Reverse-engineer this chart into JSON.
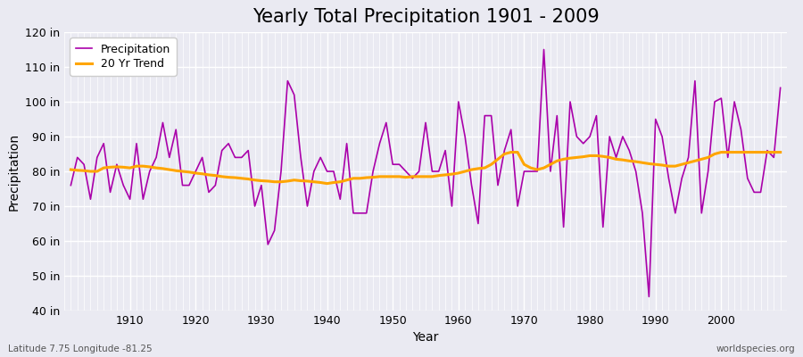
{
  "title": "Yearly Total Precipitation 1901 - 2009",
  "ylabel": "Precipitation",
  "xlabel": "Year",
  "lat_lon_label": "Latitude 7.75 Longitude -81.25",
  "watermark": "worldspecies.org",
  "ylim": [
    40,
    120
  ],
  "ytick_step": 10,
  "years": [
    1901,
    1902,
    1903,
    1904,
    1905,
    1906,
    1907,
    1908,
    1909,
    1910,
    1911,
    1912,
    1913,
    1914,
    1915,
    1916,
    1917,
    1918,
    1919,
    1920,
    1921,
    1922,
    1923,
    1924,
    1925,
    1926,
    1927,
    1928,
    1929,
    1930,
    1931,
    1932,
    1933,
    1934,
    1935,
    1936,
    1937,
    1938,
    1939,
    1940,
    1941,
    1942,
    1943,
    1944,
    1945,
    1946,
    1947,
    1948,
    1949,
    1950,
    1951,
    1952,
    1953,
    1954,
    1955,
    1956,
    1957,
    1958,
    1959,
    1960,
    1961,
    1962,
    1963,
    1964,
    1965,
    1966,
    1967,
    1968,
    1969,
    1970,
    1971,
    1972,
    1973,
    1974,
    1975,
    1976,
    1977,
    1978,
    1979,
    1980,
    1981,
    1982,
    1983,
    1984,
    1985,
    1986,
    1987,
    1988,
    1989,
    1990,
    1991,
    1992,
    1993,
    1994,
    1995,
    1996,
    1997,
    1998,
    1999,
    2000,
    2001,
    2002,
    2003,
    2004,
    2005,
    2006,
    2007,
    2008,
    2009
  ],
  "precip": [
    76,
    84,
    82,
    72,
    84,
    88,
    74,
    82,
    76,
    72,
    88,
    72,
    80,
    84,
    94,
    84,
    92,
    76,
    76,
    80,
    84,
    74,
    76,
    86,
    88,
    84,
    84,
    86,
    70,
    76,
    59,
    63,
    80,
    106,
    102,
    84,
    70,
    80,
    84,
    80,
    80,
    72,
    88,
    68,
    68,
    68,
    80,
    88,
    94,
    82,
    82,
    80,
    78,
    80,
    94,
    80,
    80,
    86,
    70,
    100,
    90,
    76,
    65,
    96,
    96,
    76,
    86,
    92,
    70,
    80,
    80,
    80,
    115,
    80,
    96,
    64,
    100,
    90,
    88,
    90,
    96,
    64,
    90,
    84,
    90,
    86,
    80,
    68,
    44,
    95,
    90,
    78,
    68,
    78,
    84,
    106,
    68,
    80,
    100,
    101,
    84,
    100,
    92,
    78,
    74,
    74,
    86,
    84,
    104
  ],
  "trend": [
    80.5,
    80.3,
    80.2,
    80.0,
    80.0,
    81.0,
    81.2,
    81.3,
    81.2,
    81.0,
    81.5,
    81.5,
    81.3,
    81.0,
    80.8,
    80.5,
    80.2,
    80.0,
    79.8,
    79.5,
    79.3,
    79.0,
    78.8,
    78.5,
    78.3,
    78.2,
    78.0,
    77.8,
    77.5,
    77.3,
    77.2,
    77.0,
    77.0,
    77.2,
    77.5,
    77.3,
    77.2,
    77.0,
    76.8,
    76.5,
    76.8,
    77.0,
    77.5,
    78.0,
    78.0,
    78.2,
    78.3,
    78.5,
    78.5,
    78.5,
    78.5,
    78.3,
    78.5,
    78.5,
    78.5,
    78.5,
    78.8,
    79.0,
    79.2,
    79.5,
    80.0,
    80.5,
    80.8,
    81.0,
    82.0,
    83.5,
    85.0,
    85.5,
    85.5,
    82.0,
    81.0,
    80.5,
    81.0,
    82.0,
    83.0,
    83.5,
    83.8,
    84.0,
    84.2,
    84.5,
    84.5,
    84.3,
    84.0,
    83.5,
    83.3,
    83.0,
    82.8,
    82.5,
    82.2,
    82.0,
    81.8,
    81.5,
    81.5,
    82.0,
    82.5,
    83.0,
    83.5,
    84.0,
    85.0,
    85.5,
    85.5,
    85.5,
    85.5,
    85.5,
    85.5,
    85.5,
    85.5,
    85.5,
    85.5
  ],
  "precip_color": "#AA00AA",
  "trend_color": "#FFA500",
  "bg_color": "#EAEAF2",
  "grid_color": "#FFFFFF",
  "title_fontsize": 15,
  "label_fontsize": 10,
  "tick_fontsize": 9,
  "legend_fontsize": 9
}
